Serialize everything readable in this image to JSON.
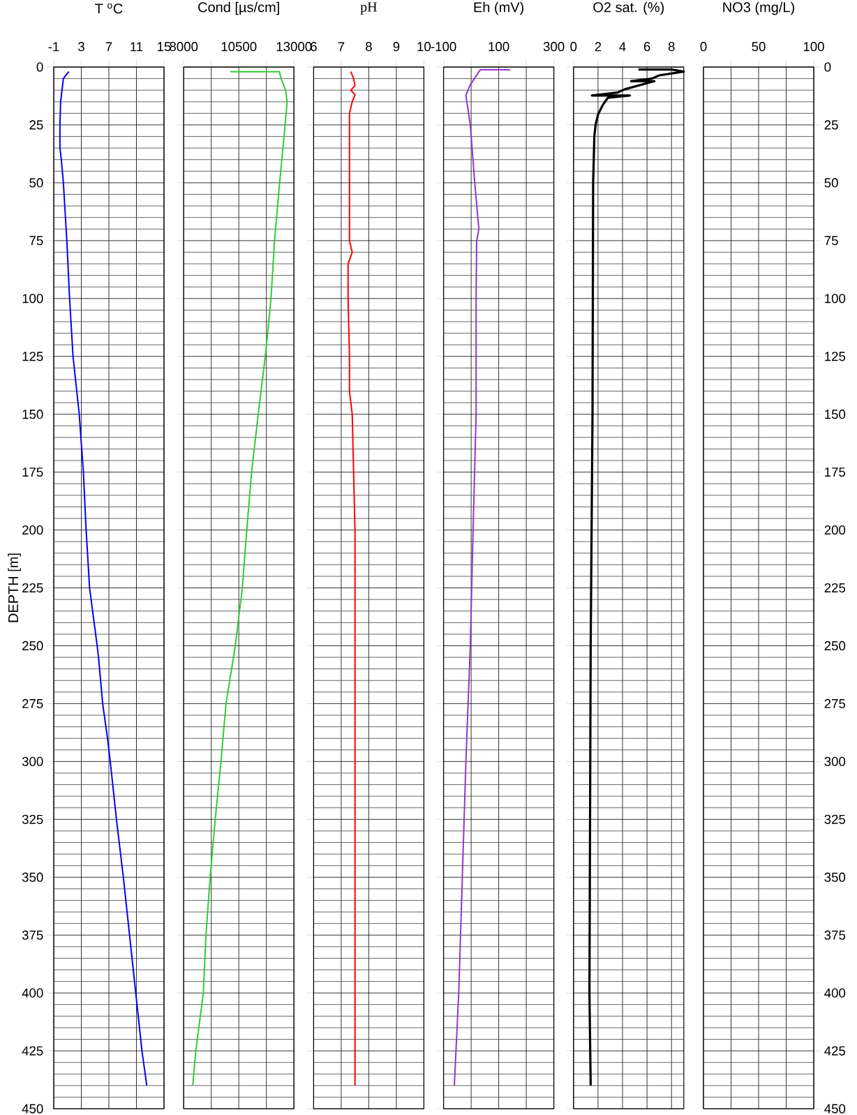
{
  "chart_data": [
    {
      "type": "line",
      "title": "T $^{o}$C",
      "ylabel": "DEPTH  [m]",
      "xlim": [
        -1,
        15
      ],
      "xticks": [
        -1,
        3,
        7,
        11,
        15
      ],
      "ylim": [
        450,
        0
      ],
      "yticks": [
        0,
        25,
        50,
        75,
        100,
        125,
        150,
        175,
        200,
        225,
        250,
        275,
        300,
        325,
        350,
        375,
        400,
        425,
        450
      ],
      "grid": true,
      "series": [
        {
          "color": "#0000ff",
          "x": [
            1.2,
            0.9,
            0.4,
            0.0,
            -0.1,
            -0.1,
            0.1,
            0.4,
            0.7,
            0.9,
            1.3,
            1.8,
            2.7,
            3.3,
            3.7,
            4.2,
            5.3,
            5.5,
            6.1,
            6.8,
            7.2,
            8.1,
            9.1,
            10.0,
            10.9,
            11.8,
            12.5
          ],
          "values": [
            2,
            3,
            5,
            15,
            25,
            35,
            40,
            50,
            65,
            75,
            100,
            125,
            150,
            175,
            200,
            225,
            250,
            255,
            275,
            290,
            300,
            325,
            350,
            375,
            400,
            425,
            440
          ]
        }
      ]
    },
    {
      "type": "line",
      "title": "Cond [µs/cm]",
      "tick_labels": "x",
      "xlim": [
        8000,
        13000
      ],
      "xticks": [
        8000,
        {
          "value": 9250,
          "label": null
        },
        10500,
        {
          "value": 11750,
          "label": null
        },
        13000
      ],
      "ylim": [
        450,
        0
      ],
      "yticks": [
        0,
        25,
        50,
        75,
        100,
        125,
        150,
        175,
        200,
        225,
        250,
        275,
        300,
        325,
        350,
        375,
        400,
        425,
        450
      ],
      "grid": true,
      "series": [
        {
          "color": "#33cc33",
          "x": [
            10110,
            12340,
            12420,
            12620,
            12690,
            12600,
            12350,
            12120,
            11960,
            11700,
            11380,
            11080,
            10860,
            10660,
            10340,
            9920,
            9690,
            9430,
            9200,
            9010,
            8890,
            8550,
            8410
          ],
          "values": [
            2,
            2,
            5,
            10,
            15,
            25,
            50,
            75,
            100,
            125,
            150,
            175,
            200,
            225,
            250,
            275,
            300,
            325,
            350,
            375,
            400,
            425,
            440
          ]
        }
      ]
    },
    {
      "type": "line",
      "title": "pH",
      "tick_labels": "x",
      "xlim": [
        6,
        10
      ],
      "xticks": [
        6,
        7,
        8,
        9,
        10
      ],
      "ylim": [
        450,
        0
      ],
      "yticks": [
        0,
        25,
        50,
        75,
        100,
        125,
        150,
        175,
        200,
        225,
        250,
        275,
        300,
        325,
        350,
        375,
        400,
        425,
        450
      ],
      "grid": true,
      "series": [
        {
          "color": "#ff0000",
          "x": [
            7.35,
            7.45,
            7.5,
            7.35,
            7.5,
            7.4,
            7.3,
            7.3,
            7.4,
            7.25,
            7.25,
            7.3,
            7.3,
            7.4,
            7.45,
            7.5,
            7.5
          ],
          "values": [
            2,
            5,
            8,
            10,
            12,
            15,
            20,
            75,
            80,
            85,
            100,
            125,
            140,
            150,
            175,
            200,
            440
          ]
        }
      ]
    },
    {
      "type": "line",
      "title": "Eh (mV)",
      "tick_labels": "x",
      "xlim": [
        -100,
        300
      ],
      "xticks": [
        -100,
        {
          "value": 0,
          "label": null
        },
        100,
        {
          "value": 200,
          "label": null
        },
        300
      ],
      "ylim": [
        450,
        0
      ],
      "yticks": [
        0,
        25,
        50,
        75,
        100,
        125,
        150,
        175,
        200,
        225,
        250,
        275,
        300,
        325,
        350,
        375,
        400,
        425,
        450
      ],
      "grid": true,
      "series": [
        {
          "color": "#9933cc",
          "x": [
            141,
            33,
            -5,
            -19,
            -3,
            13,
            28,
            20,
            18,
            18,
            7,
            -3,
            -19,
            -32,
            -45,
            -61
          ],
          "values": [
            1.2,
            1.2,
            8,
            12.3,
            25,
            50,
            70,
            75,
            100,
            150,
            200,
            250,
            300,
            350,
            400,
            440
          ]
        }
      ]
    },
    {
      "type": "line",
      "title": "O2 sat.  (%)",
      "tick_labels": "x",
      "xlim": [
        0,
        9
      ],
      "xticks": [
        0,
        2,
        4,
        6,
        8
      ],
      "ylim": [
        450,
        0
      ],
      "yticks": [
        0,
        25,
        50,
        75,
        100,
        125,
        150,
        175,
        200,
        225,
        250,
        275,
        300,
        325,
        350,
        375,
        400,
        425,
        450
      ],
      "grid": true,
      "series": [
        {
          "color": "#000000",
          "x": [
            5.3,
            8.0,
            9.0,
            7.0,
            6.4,
            4.7,
            6.6,
            4.2,
            3.6,
            1.5,
            4.6,
            2.8,
            2.4,
            2.0,
            1.8,
            1.7,
            1.6,
            1.55,
            1.4,
            1.3,
            1.4
          ],
          "values": [
            1.1,
            1.1,
            2,
            3.6,
            5,
            6.1,
            6.1,
            9.6,
            11,
            12.3,
            12.3,
            13.3,
            16.3,
            20.5,
            25,
            30,
            50,
            150,
            250,
            400,
            440
          ]
        }
      ]
    },
    {
      "type": "line",
      "title": "NO3  (mg/L)",
      "xlim": [
        0,
        100
      ],
      "xticks": [
        0,
        {
          "value": 25,
          "label": null
        },
        50,
        {
          "value": 75,
          "label": null
        },
        100
      ],
      "ylim": [
        450,
        0
      ],
      "yticks": [
        0,
        25,
        50,
        75,
        100,
        125,
        150,
        175,
        200,
        225,
        250,
        275,
        300,
        325,
        350,
        375,
        400,
        425,
        450
      ],
      "grid": true
    }
  ]
}
